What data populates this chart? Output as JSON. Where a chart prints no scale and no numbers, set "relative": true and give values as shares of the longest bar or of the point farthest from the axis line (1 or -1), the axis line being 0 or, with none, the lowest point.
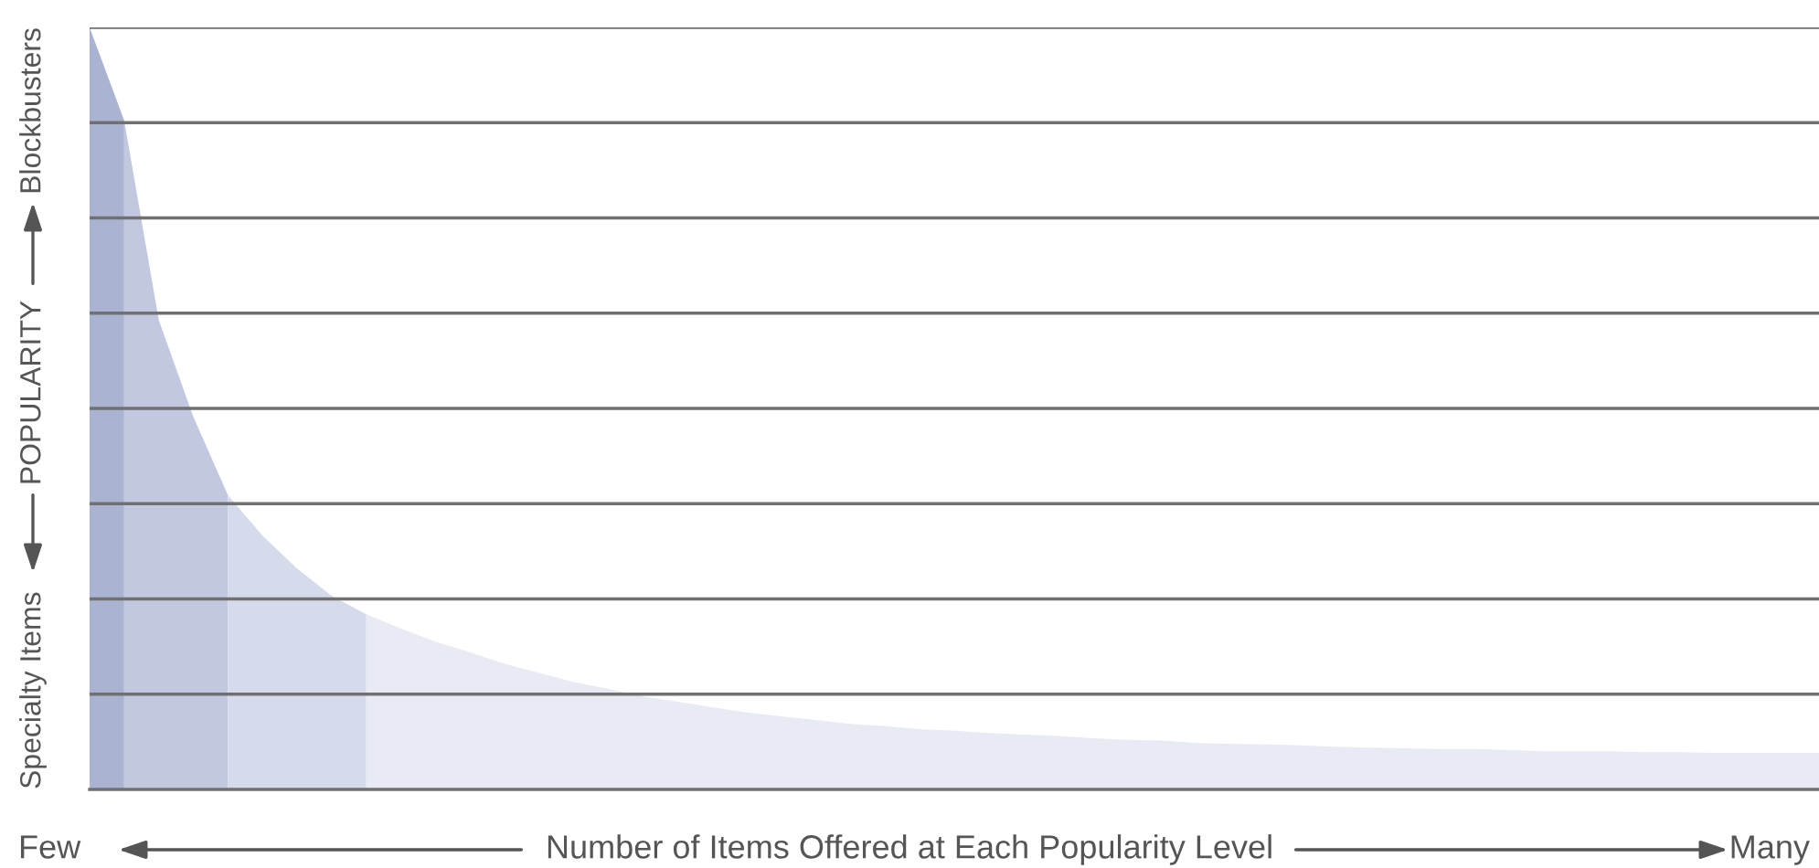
{
  "chart_data": {
    "type": "area",
    "relative": true,
    "grid": "y",
    "xlabel": "Number of Items Offered at Each Popularity Level",
    "ylabel": "POPULARITY",
    "annotations": [
      "Few",
      "Many",
      "Specialty Items",
      "Blockbusters"
    ],
    "categories": [
      null,
      null,
      null,
      null,
      null,
      null,
      null,
      null,
      null,
      null,
      null,
      null,
      null,
      null,
      null,
      null,
      null,
      null,
      null,
      null,
      null,
      null,
      null,
      null,
      null,
      null,
      null,
      null,
      null,
      null,
      null,
      null,
      null,
      null,
      null,
      null,
      null,
      null,
      null,
      null,
      null,
      null,
      null,
      null,
      null,
      null,
      null,
      null,
      null,
      null,
      null
    ],
    "series": [
      {
        "color": "#aab4d2",
        "values": [
          1,
          0.878,
          null,
          null,
          null,
          null,
          null,
          null,
          null,
          null,
          null,
          null,
          null,
          null,
          null,
          null,
          null,
          null,
          null,
          null,
          null,
          null,
          null,
          null,
          null,
          null,
          null,
          null,
          null,
          null,
          null,
          null,
          null,
          null,
          null,
          null,
          null,
          null,
          null,
          null,
          null,
          null,
          null,
          null,
          null,
          null,
          null,
          null,
          null,
          null,
          null
        ]
      },
      {
        "color": "#c1c8e0",
        "values": [
          null,
          0.878,
          0.616,
          0.489,
          0.386,
          null,
          null,
          null,
          null,
          null,
          null,
          null,
          null,
          null,
          null,
          null,
          null,
          null,
          null,
          null,
          null,
          null,
          null,
          null,
          null,
          null,
          null,
          null,
          null,
          null,
          null,
          null,
          null,
          null,
          null,
          null,
          null,
          null,
          null,
          null,
          null,
          null,
          null,
          null,
          null,
          null,
          null,
          null,
          null,
          null,
          null
        ]
      },
      {
        "color": "#d5dbea",
        "values": [
          null,
          null,
          null,
          null,
          0.386,
          0.333,
          0.29,
          0.254,
          0.23,
          null,
          null,
          null,
          null,
          null,
          null,
          null,
          null,
          null,
          null,
          null,
          null,
          null,
          null,
          null,
          null,
          null,
          null,
          null,
          null,
          null,
          null,
          null,
          null,
          null,
          null,
          null,
          null,
          null,
          null,
          null,
          null,
          null,
          null,
          null,
          null,
          null,
          null,
          null,
          null,
          null,
          null
        ]
      },
      {
        "color": "#e8ebf4",
        "values": [
          null,
          null,
          null,
          null,
          null,
          null,
          null,
          null,
          0.23,
          0.211,
          0.194,
          0.18,
          0.165,
          0.153,
          0.141,
          0.132,
          0.122,
          0.115,
          0.108,
          0.101,
          0.096,
          0.091,
          0.086,
          0.083,
          0.079,
          0.077,
          0.074,
          0.072,
          0.07,
          0.067,
          0.065,
          0.064,
          0.061,
          0.06,
          0.059,
          0.058,
          0.056,
          0.055,
          0.054,
          0.053,
          0.053,
          0.052,
          0.05,
          0.05,
          0.05,
          0.049,
          0.049,
          0.048,
          0.048,
          0.048,
          0.048
        ]
      }
    ]
  }
}
